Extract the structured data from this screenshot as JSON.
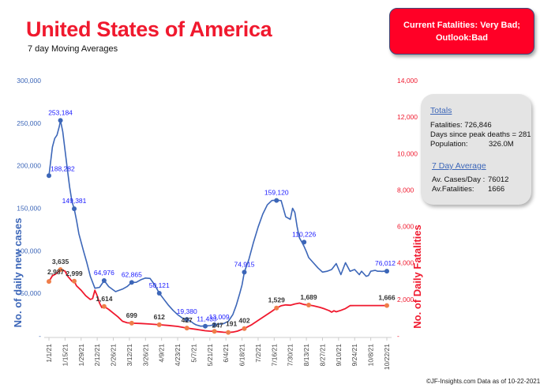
{
  "header": {
    "title": "United States of America",
    "subtitle": "7 day Moving Averages"
  },
  "status": {
    "line1": "Current Fatalities: Very Bad;",
    "line2": "Outlook:Bad",
    "color": "#ff0026"
  },
  "totals": {
    "heading": "Totals",
    "fatalities": "Fatalities: 726,846",
    "days_since_peak": "Days since peak deaths = 281",
    "population_label": "Population:",
    "population_value": "326.0M",
    "avg_heading": "7 Day Average",
    "avg_cases_label": "Av. Cases/Day :",
    "avg_cases_value": "76012",
    "avg_fatalities_label": "Av.Fatalities:",
    "avg_fatalities_value": "1666"
  },
  "footer": "©JF-Insights.com  Data as of 10-22-2021",
  "chart_data": {
    "type": "line",
    "title": "United States of America",
    "subtitle": "7 day Moving Averages",
    "x_tick_labels": [
      "1/1/21",
      "1/15/21",
      "1/29/21",
      "2/12/21",
      "2/26/21",
      "3/12/21",
      "3/26/21",
      "4/9/21",
      "4/23/21",
      "5/7/21",
      "5/21/21",
      "6/4/21",
      "6/18/21",
      "7/2/21",
      "7/16/21",
      "7/30/21",
      "8/13/21",
      "8/27/21",
      "9/10/21",
      "9/24/21",
      "10/8/21",
      "10/22/21"
    ],
    "y_left": {
      "label": "No. of daily new  cases",
      "ylim": [
        0,
        300000
      ],
      "ticks": [
        "300,000",
        "250,000",
        "200,000",
        "150,000",
        "100,000",
        "50,000",
        "-"
      ],
      "tick_values": [
        300000,
        250000,
        200000,
        150000,
        100000,
        50000,
        0
      ],
      "color": "#3c66b8"
    },
    "y_right": {
      "label": "No. of Daily Fatalities",
      "ylim": [
        0,
        14000
      ],
      "ticks": [
        "14,000",
        "12,000",
        "10,000",
        "8,000",
        "6,000",
        "4,000",
        "2,000",
        "-"
      ],
      "tick_values": [
        14000,
        12000,
        10000,
        8000,
        6000,
        4000,
        2000,
        0
      ],
      "color": "#f0192e"
    },
    "grid": false,
    "series": [
      {
        "name": "Daily new cases (7-day avg)",
        "axis": "left",
        "color": "#3c66b8",
        "day": [
          0,
          3,
          5,
          7,
          9,
          10,
          12,
          14,
          16,
          18,
          20,
          22,
          24,
          26,
          28,
          30,
          33,
          36,
          40,
          44,
          48,
          52,
          56,
          58,
          60,
          64,
          68,
          72,
          76,
          80,
          84,
          88,
          92,
          96,
          100,
          104,
          108,
          112,
          116,
          120,
          124,
          126,
          128,
          132,
          136,
          140,
          144,
          148,
          150,
          152,
          156,
          160,
          163,
          166,
          168,
          170,
          174,
          178,
          182,
          186,
          190,
          194,
          198,
          202,
          206,
          210,
          212,
          214,
          216,
          218,
          220,
          222,
          224,
          226,
          230,
          234,
          238,
          242,
          246,
          250,
          254,
          258,
          262,
          266,
          270,
          272,
          274,
          276,
          278,
          280,
          282,
          284,
          286,
          288,
          290,
          291,
          293,
          294
        ],
        "values": [
          188282,
          222000,
          232000,
          236000,
          246000,
          253184,
          240000,
          218000,
          196000,
          175000,
          158000,
          149381,
          136000,
          120000,
          110000,
          100000,
          86000,
          70000,
          56000,
          57000,
          64976,
          58000,
          54000,
          52000,
          53000,
          55000,
          58000,
          62865,
          63000,
          66000,
          68000,
          67500,
          60000,
          50121,
          43000,
          36000,
          30000,
          25000,
          21000,
          19380,
          16500,
          14500,
          13000,
          11433,
          11700,
          12100,
          13009,
          13800,
          14000,
          14500,
          17000,
          25000,
          36000,
          50000,
          60000,
          74915,
          90000,
          110000,
          128000,
          143000,
          154000,
          159120,
          159500,
          159000,
          140000,
          137000,
          150000,
          145000,
          128000,
          115000,
          110226,
          105000,
          99000,
          92000,
          86000,
          80000,
          75000,
          76012,
          78000,
          85000,
          72000,
          86000,
          76012,
          78000,
          72000,
          76012,
          73000,
          70000,
          71000,
          76012,
          76500,
          77000,
          76000,
          76012,
          75800,
          76012,
          76012,
          76012
        ],
        "labeled_points": [
          {
            "day": 0,
            "value": 188282,
            "label": "188,282"
          },
          {
            "day": 10,
            "value": 253184,
            "label": "253,184"
          },
          {
            "day": 22,
            "value": 149381,
            "label": "149,381"
          },
          {
            "day": 48,
            "value": 64976,
            "label": "64,976"
          },
          {
            "day": 72,
            "value": 62865,
            "label": "62,865"
          },
          {
            "day": 96,
            "value": 50121,
            "label": "50,121"
          },
          {
            "day": 120,
            "value": 19380,
            "label": "19,380"
          },
          {
            "day": 136,
            "value": 11433,
            "label": "11,433"
          },
          {
            "day": 144,
            "value": 13009,
            "label": "13,009"
          },
          {
            "day": 170,
            "value": 74915,
            "label": "74,915"
          },
          {
            "day": 198,
            "value": 159120,
            "label": "159,120"
          },
          {
            "day": 222,
            "value": 110226,
            "label": "110,226"
          },
          {
            "day": 294,
            "value": 76012,
            "label": "76,012"
          }
        ]
      },
      {
        "name": "Daily fatalities (7-day avg)",
        "axis": "right",
        "color": "#f0192e",
        "day": [
          0,
          3,
          6,
          9,
          10,
          12,
          14,
          16,
          18,
          20,
          22,
          24,
          28,
          32,
          36,
          38,
          40,
          42,
          44,
          46,
          48,
          52,
          56,
          60,
          64,
          68,
          72,
          80,
          88,
          96,
          104,
          112,
          120,
          128,
          136,
          140,
          144,
          148,
          152,
          156,
          160,
          164,
          168,
          170,
          176,
          182,
          188,
          194,
          198,
          202,
          206,
          210,
          214,
          218,
          222,
          226,
          230,
          236,
          240,
          244,
          246,
          248,
          250,
          254,
          258,
          262,
          266,
          268,
          270,
          272,
          274,
          276,
          278,
          280,
          284,
          288,
          292,
          294
        ],
        "values": [
          2987,
          3300,
          3400,
          3550,
          3635,
          3600,
          3550,
          3300,
          3150,
          3000,
          2999,
          2750,
          2500,
          2200,
          2000,
          2050,
          2500,
          2200,
          1800,
          1550,
          1614,
          1450,
          1250,
          1050,
          800,
          720,
          699,
          680,
          650,
          612,
          570,
          520,
          427,
          360,
          280,
          260,
          247,
          225,
          200,
          191,
          210,
          260,
          360,
          402,
          600,
          850,
          1100,
          1350,
          1529,
          1650,
          1700,
          1680,
          1750,
          1800,
          1720,
          1689,
          1650,
          1560,
          1480,
          1380,
          1300,
          1380,
          1320,
          1400,
          1500,
          1660,
          1666,
          1666,
          1666,
          1666,
          1666,
          1666,
          1666,
          1666,
          1666,
          1666,
          1666,
          1666
        ],
        "labeled_points": [
          {
            "day": 0,
            "value": 2987,
            "label": "2,987"
          },
          {
            "day": 10,
            "value": 3635,
            "label": "3,635"
          },
          {
            "day": 22,
            "value": 2999,
            "label": "2,999"
          },
          {
            "day": 48,
            "value": 1614,
            "label": "1,614"
          },
          {
            "day": 72,
            "value": 699,
            "label": "699"
          },
          {
            "day": 96,
            "value": 612,
            "label": "612"
          },
          {
            "day": 120,
            "value": 427,
            "label": "427"
          },
          {
            "day": 144,
            "value": 247,
            "label": "247"
          },
          {
            "day": 156,
            "value": 191,
            "label": "191"
          },
          {
            "day": 170,
            "value": 402,
            "label": "402"
          },
          {
            "day": 198,
            "value": 1529,
            "label": "1,529"
          },
          {
            "day": 226,
            "value": 1689,
            "label": "1,689"
          },
          {
            "day": 294,
            "value": 1666,
            "label": "1,666"
          }
        ]
      }
    ]
  }
}
